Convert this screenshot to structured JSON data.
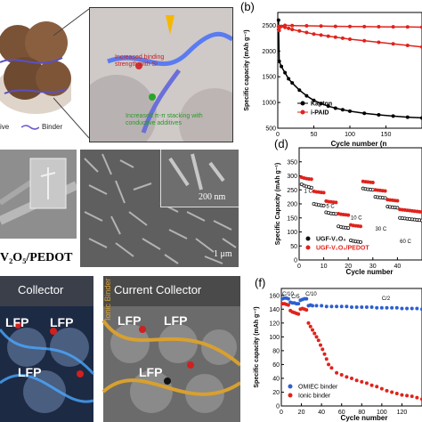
{
  "panels": {
    "a": {
      "callouts": [
        "Increased binding strength with Si",
        "Increased π-π stacking with conductive additives"
      ],
      "legend_left": "ive",
      "legend_binder": "Binder"
    },
    "b": {
      "letter": "(b)"
    },
    "c": {
      "material_label": "V₂O₅/PEDOT",
      "scale_1": "200 nm",
      "scale_2": "1 μm"
    },
    "d": {
      "letter": "(d)"
    },
    "e": {
      "left_title": "Collector",
      "right_title": "Current Collector",
      "ionic_binder": "Ionic Binder",
      "lfp": "LFP"
    },
    "f": {
      "letter": "(f)"
    },
    "colors": {
      "kapton": "#000000",
      "ipaid": "#e0231c",
      "ugf": "#111111",
      "ugf_pedot": "#e0231c",
      "omiec": "#2d5fd0",
      "ionic": "#e0231c",
      "binder_line": "#6a5acd"
    }
  },
  "chart_data": [
    {
      "id": "b",
      "type": "line",
      "xlabel": "Cycle number (n",
      "ylabel": "Specific capacity (mAh g⁻¹)",
      "xlim": [
        0,
        200
      ],
      "ylim": [
        500,
        2750
      ],
      "xticks": [
        0,
        50,
        100,
        150
      ],
      "yticks": [
        500,
        1000,
        1500,
        2000,
        2500
      ],
      "legend_position": "bottom-left",
      "series": [
        {
          "name": "Kapton",
          "x": [
            1,
            2,
            5,
            10,
            15,
            20,
            30,
            40,
            50,
            60,
            70,
            80,
            90,
            100,
            120,
            140,
            160,
            180,
            200
          ],
          "y": [
            2600,
            1800,
            1700,
            1580,
            1460,
            1380,
            1240,
            1130,
            1040,
            980,
            930,
            890,
            860,
            830,
            790,
            760,
            735,
            715,
            700
          ]
        },
        {
          "name": "i-PAID",
          "x": [
            1,
            2,
            5,
            10,
            15,
            20,
            30,
            40,
            50,
            60,
            70,
            80,
            90,
            100,
            120,
            140,
            160,
            180,
            200
          ],
          "y": [
            2420,
            2400,
            2480,
            2460,
            2440,
            2420,
            2390,
            2360,
            2330,
            2310,
            2290,
            2270,
            2250,
            2230,
            2200,
            2170,
            2140,
            2110,
            2080
          ]
        },
        {
          "name": "",
          "x": [
            1,
            10,
            20,
            40,
            60,
            80,
            100,
            120,
            140,
            160,
            180,
            200
          ],
          "y": [
            2480,
            2500,
            2495,
            2490,
            2485,
            2480,
            2478,
            2475,
            2472,
            2470,
            2468,
            2465
          ]
        }
      ]
    },
    {
      "id": "d",
      "type": "scatter",
      "xlabel": "Cycle number",
      "ylabel": "Specific Capacity (mAh g⁻¹)",
      "xlim": [
        0,
        50
      ],
      "ylim": [
        0,
        400
      ],
      "xticks": [
        0,
        10,
        20,
        30,
        40
      ],
      "yticks": [
        0,
        50,
        100,
        150,
        200,
        250,
        300,
        350
      ],
      "rate_labels": [
        "1 C",
        "5 C",
        "10 C",
        "30 C",
        "60 C"
      ],
      "legend_position": "bottom-left",
      "series": [
        {
          "name": "UGF-V₂O₅",
          "x": [
            1,
            2,
            3,
            4,
            5,
            6,
            7,
            8,
            9,
            10,
            11,
            12,
            13,
            14,
            15,
            16,
            17,
            18,
            19,
            20,
            21,
            22,
            23,
            24,
            25,
            26,
            27,
            28,
            29,
            30,
            31,
            32,
            33,
            34,
            35,
            36,
            37,
            38,
            39,
            40,
            41,
            42,
            43,
            44,
            45,
            46,
            47,
            48,
            49,
            50
          ],
          "y": [
            270,
            265,
            262,
            260,
            258,
            200,
            198,
            196,
            195,
            194,
            170,
            168,
            166,
            165,
            164,
            120,
            118,
            116,
            115,
            114,
            70,
            68,
            66,
            65,
            64,
            255,
            253,
            252,
            251,
            250,
            225,
            224,
            223,
            222,
            221,
            190,
            189,
            188,
            187,
            186,
            150,
            149,
            148,
            147,
            146,
            145,
            144,
            143,
            142,
            141
          ]
        },
        {
          "name": "UGF-V₂O₅/PEDOT",
          "x": [
            1,
            2,
            3,
            4,
            5,
            6,
            7,
            8,
            9,
            10,
            11,
            12,
            13,
            14,
            15,
            16,
            17,
            18,
            19,
            20,
            21,
            22,
            23,
            24,
            25,
            26,
            27,
            28,
            29,
            30,
            31,
            32,
            33,
            34,
            35,
            36,
            37,
            38,
            39,
            40,
            41,
            42,
            43,
            44,
            45,
            46,
            47,
            48,
            49,
            50
          ],
          "y": [
            295,
            292,
            290,
            289,
            288,
            245,
            243,
            242,
            241,
            240,
            210,
            208,
            207,
            206,
            205,
            165,
            163,
            162,
            161,
            160,
            125,
            123,
            122,
            121,
            120,
            280,
            279,
            278,
            277,
            276,
            250,
            249,
            248,
            247,
            246,
            215,
            214,
            213,
            212,
            211,
            180,
            179,
            178,
            177,
            176,
            175,
            174,
            173,
            172,
            171
          ]
        }
      ]
    },
    {
      "id": "f",
      "type": "scatter",
      "xlabel": "Cycle number",
      "ylabel": "Specific capacity (mAh g⁻¹)",
      "xlim": [
        0,
        140
      ],
      "ylim": [
        0,
        170
      ],
      "xticks": [
        0,
        20,
        40,
        60,
        80,
        100,
        120
      ],
      "yticks": [
        0,
        20,
        40,
        60,
        80,
        100,
        120,
        140,
        160
      ],
      "rate_labels": [
        "C/10",
        "C/5",
        "C/10",
        "C/2"
      ],
      "legend_position": "bottom-left",
      "series": [
        {
          "name": "OMIEC binder",
          "x": [
            1,
            3,
            5,
            7,
            9,
            11,
            13,
            15,
            17,
            19,
            21,
            23,
            25,
            27,
            29,
            31,
            35,
            40,
            45,
            50,
            55,
            60,
            65,
            70,
            75,
            80,
            85,
            90,
            95,
            100,
            105,
            110,
            115,
            120,
            125,
            130,
            135,
            140
          ],
          "y": [
            155,
            156,
            156,
            155,
            150,
            149,
            149,
            148,
            148,
            153,
            154,
            155,
            155,
            145,
            146,
            145,
            145,
            145,
            144,
            144,
            144,
            144,
            144,
            143,
            143,
            143,
            143,
            143,
            142,
            142,
            142,
            142,
            142,
            141,
            141,
            141,
            141,
            140
          ]
        },
        {
          "name": "Ionic binder",
          "x": [
            1,
            3,
            5,
            7,
            9,
            11,
            13,
            15,
            17,
            19,
            21,
            23,
            25,
            27,
            29,
            31,
            33,
            35,
            37,
            39,
            41,
            43,
            45,
            47,
            50,
            55,
            60,
            65,
            70,
            75,
            80,
            85,
            90,
            95,
            100,
            105,
            110,
            115,
            120,
            125,
            130,
            135,
            140
          ],
          "y": [
            148,
            148,
            147,
            146,
            138,
            136,
            135,
            134,
            133,
            140,
            141,
            140,
            139,
            120,
            115,
            110,
            105,
            100,
            95,
            88,
            82,
            75,
            68,
            60,
            55,
            48,
            45,
            42,
            40,
            37,
            35,
            33,
            30,
            28,
            25,
            22,
            20,
            18,
            16,
            15,
            14,
            12,
            10
          ]
        }
      ]
    }
  ]
}
